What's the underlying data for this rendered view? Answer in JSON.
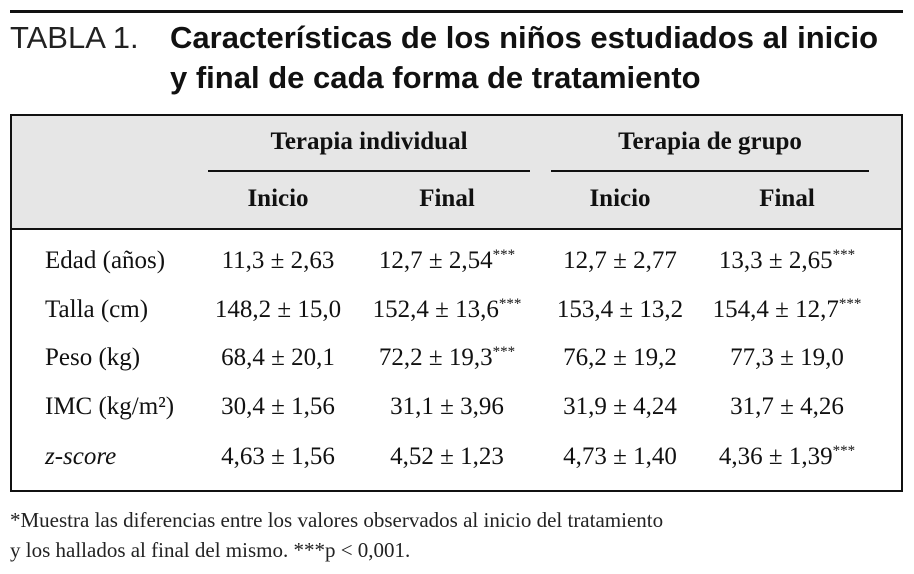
{
  "title": {
    "label": "TABLA 1.",
    "lines": [
      "Características de los niños estudiados al inicio",
      "y final de cada forma de tratamiento"
    ]
  },
  "table": {
    "groups": [
      "Terapia individual",
      "Terapia de grupo"
    ],
    "subheaders": [
      "Inicio",
      "Final",
      "Inicio",
      "Final"
    ],
    "rows": [
      {
        "label": "Edad (años)",
        "cells": [
          {
            "text": "11,3 ± 2,63"
          },
          {
            "text": "12,7 ± 2,54",
            "sup": "***"
          },
          {
            "text": "12,7 ± 2,77"
          },
          {
            "text": "13,3 ± 2,65",
            "sup": "***"
          }
        ]
      },
      {
        "label": "Talla (cm)",
        "cells": [
          {
            "text": "148,2 ± 15,0"
          },
          {
            "text": "152,4 ± 13,6",
            "sup": "***"
          },
          {
            "text": "153,4 ± 13,2"
          },
          {
            "text": "154,4 ± 12,7",
            "sup": "***"
          }
        ]
      },
      {
        "label": "Peso (kg)",
        "cells": [
          {
            "text": "68,4 ± 20,1"
          },
          {
            "text": "72,2 ± 19,3",
            "sup": "***"
          },
          {
            "text": "76,2 ± 19,2"
          },
          {
            "text": "77,3 ± 19,0"
          }
        ]
      },
      {
        "label": "IMC (kg/m²)",
        "cells": [
          {
            "text": "30,4 ± 1,56"
          },
          {
            "text": "31,1 ± 3,96"
          },
          {
            "text": "31,9 ± 4,24"
          },
          {
            "text": "31,7 ± 4,26"
          }
        ]
      },
      {
        "label": "z-score",
        "italic": true,
        "cells": [
          {
            "text": "4,63 ± 1,56"
          },
          {
            "text": "4,52 ± 1,23"
          },
          {
            "text": "4,73 ± 1,40"
          },
          {
            "text": "4,36 ± 1,39",
            "sup": "***"
          }
        ]
      }
    ]
  },
  "footnote": [
    "*Muestra las diferencias entre los valores observados al inicio del tratamiento",
    "y los hallados al final del mismo. ***p < 0,001."
  ]
}
